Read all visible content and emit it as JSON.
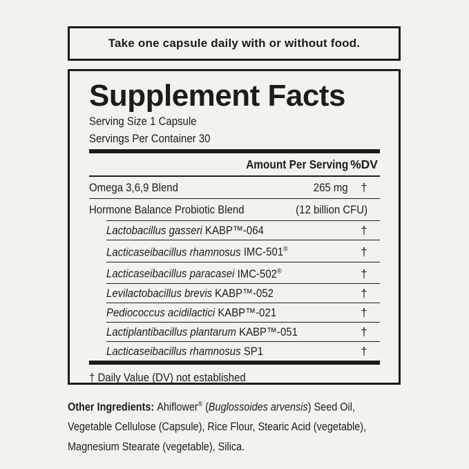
{
  "colors": {
    "background": "#f4f2ed",
    "ink": "#1d1c1a"
  },
  "directions": {
    "text": "Take one capsule daily with or without food."
  },
  "panel": {
    "title": "Supplement Facts",
    "serving_size": "Serving Size 1 Capsule",
    "servings_per_container": "Servings Per Container 30",
    "header": {
      "amount": "Amount Per Serving",
      "dv": "%DV"
    },
    "rows": [
      {
        "name": "Omega 3,6,9 Blend",
        "amount": "265 mg",
        "dv": "†"
      },
      {
        "name": "Hormone Balance Probiotic Blend",
        "amount": "(12 billion CFU)",
        "dv": ""
      }
    ],
    "sub_rows": [
      {
        "species": "Lactobacillus gasseri",
        "strain": "KABP™-064",
        "dv": "†"
      },
      {
        "species": "Lacticaseibacillus rhamnosus",
        "strain": "IMC-501®",
        "dv": "†"
      },
      {
        "species": "Lacticaseibacillus paracasei",
        "strain": "IMC-502®",
        "dv": "†"
      },
      {
        "species": "Levilactobacillus brevis",
        "strain": "KABP™-052",
        "dv": "†"
      },
      {
        "species": "Pediococcus acidilactici",
        "strain": "KABP™-021",
        "dv": "†"
      },
      {
        "species": "Lactiplantibacillus plantarum",
        "strain": "KABP™-051",
        "dv": "†"
      },
      {
        "species": "Lacticaseibacillus rhamnosus",
        "strain": "SP1",
        "dv": "†"
      }
    ],
    "footnote": "† Daily Value (DV) not established"
  },
  "other_ingredients": {
    "segments": [
      {
        "style": "bold",
        "text": "Other Ingredients: "
      },
      {
        "style": "regular",
        "text": "Ahiflower"
      },
      {
        "style": "sup",
        "text": "®"
      },
      {
        "style": "regular",
        "text": " ("
      },
      {
        "style": "italic",
        "text": "Buglossoides arvensis"
      },
      {
        "style": "regular",
        "text": ") Seed Oil,\nVegetable Cellulose (Capsule), Rice Flour, Stearic Acid (vegetable),\nMagnesium Stearate (vegetable), Silica."
      }
    ]
  }
}
